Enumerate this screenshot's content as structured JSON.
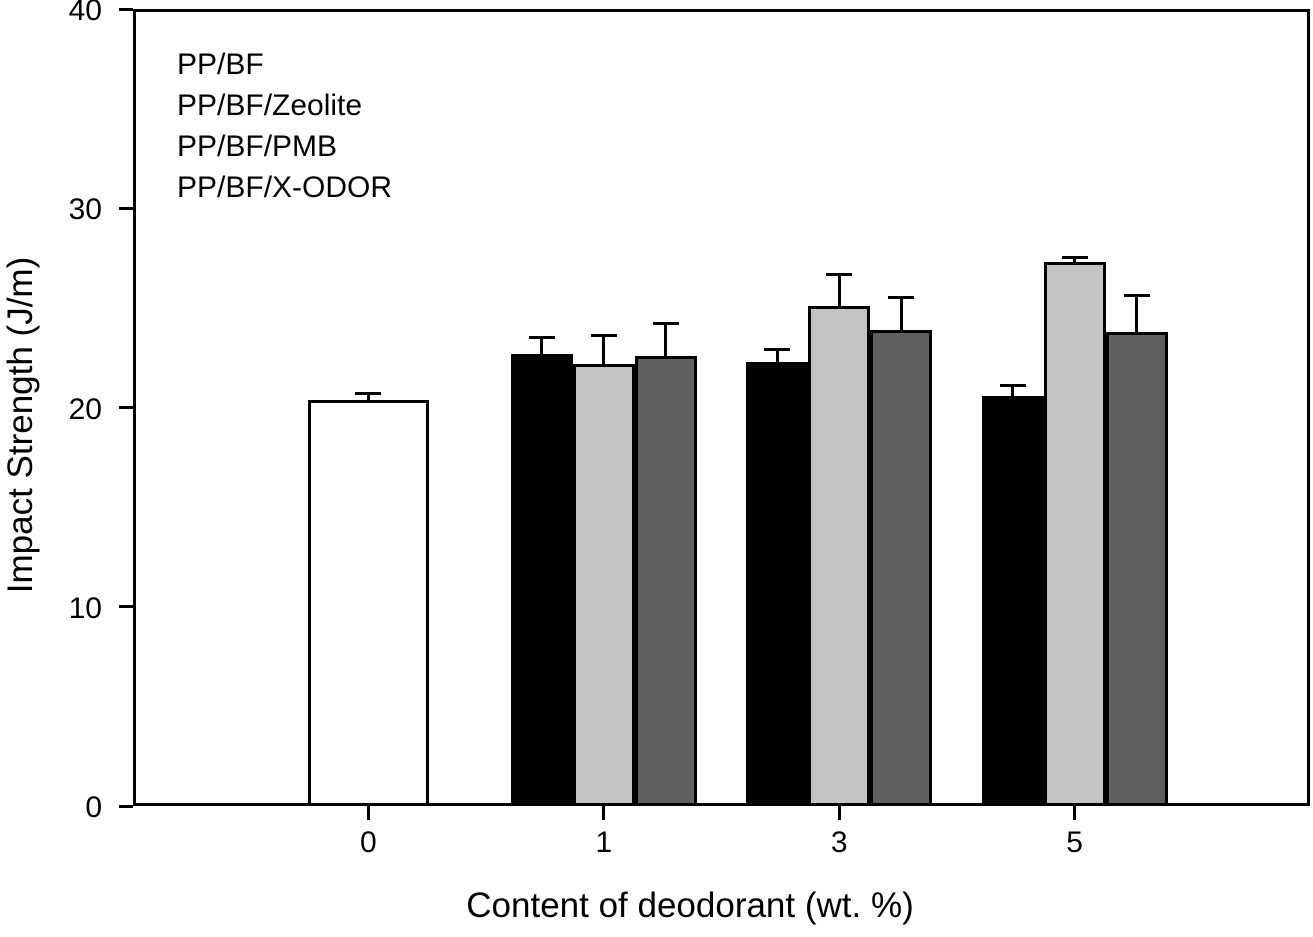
{
  "figure": {
    "background": "#ffffff",
    "frame_color": "#000000"
  },
  "chart_data": {
    "type": "bar",
    "title": "",
    "xlabel": "Content of deodorant (wt. %)",
    "ylabel": "Impact Strength (J/m)",
    "ylim": [
      0,
      40
    ],
    "yticks": [
      0,
      10,
      20,
      30,
      40
    ],
    "categories": [
      "0",
      "1",
      "3",
      "5"
    ],
    "grid": false,
    "legend": {
      "position": "top-left-inside",
      "swatches_visible": false,
      "entries": [
        "PP/BF",
        "PP/BF/Zeolite",
        "PP/BF/PMB",
        "PP/BF/X-ODOR"
      ]
    },
    "error_bars": "upper-only",
    "series": [
      {
        "name": "PP/BF",
        "color": "#ffffff",
        "values": [
          20.4,
          null,
          null,
          null
        ],
        "errors": [
          0.3,
          null,
          null,
          null
        ]
      },
      {
        "name": "PP/BF/Zeolite",
        "color": "#000000",
        "values": [
          null,
          22.7,
          22.3,
          20.6
        ],
        "errors": [
          null,
          0.8,
          0.6,
          0.5
        ]
      },
      {
        "name": "PP/BF/PMB",
        "color": "#c3c3c3",
        "values": [
          null,
          22.2,
          25.1,
          27.3
        ],
        "errors": [
          null,
          1.4,
          1.6,
          0.25
        ]
      },
      {
        "name": "PP/BF/X-ODOR",
        "color": "#5f5f5f",
        "values": [
          null,
          22.6,
          23.9,
          23.8
        ],
        "errors": [
          null,
          1.6,
          1.6,
          1.8
        ]
      }
    ]
  }
}
